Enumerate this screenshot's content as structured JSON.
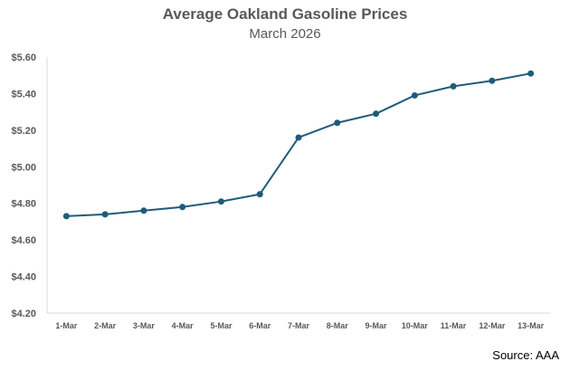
{
  "chart_data": {
    "type": "line",
    "title": "Average Oakland Gasoline Prices",
    "subtitle": "March 2026",
    "xlabel": "",
    "ylabel": "",
    "categories": [
      "1-Mar",
      "2-Mar",
      "3-Mar",
      "4-Mar",
      "5-Mar",
      "6-Mar",
      "7-Mar",
      "8-Mar",
      "9-Mar",
      "10-Mar",
      "11-Mar",
      "12-Mar",
      "13-Mar"
    ],
    "series": [
      {
        "values": [
          4.73,
          4.74,
          4.76,
          4.78,
          4.81,
          4.85,
          5.16,
          5.24,
          5.29,
          5.39,
          5.44,
          5.47,
          5.51
        ]
      }
    ],
    "ylim": [
      4.2,
      5.6
    ],
    "yticks": [
      4.2,
      4.4,
      4.6,
      4.8,
      5.0,
      5.2,
      5.4,
      5.6
    ],
    "ytick_labels": [
      "$4.20",
      "$4.40",
      "$4.60",
      "$4.80",
      "$5.00",
      "$5.20",
      "$5.40",
      "$5.60"
    ],
    "grid": false,
    "legend": "none",
    "line_color": "#1f5c7a",
    "source": "Source: AAA"
  }
}
